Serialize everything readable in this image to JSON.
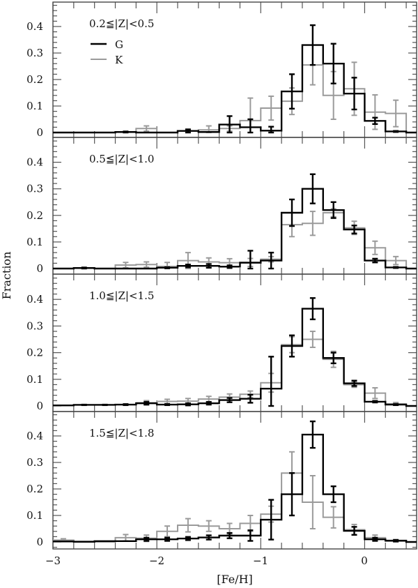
{
  "figure": {
    "xlabel": "[Fe/H]",
    "ylabel": "Fraction",
    "x_tick_labels": [
      "−3",
      "−2",
      "−1",
      "0"
    ],
    "y_tick_labels": [
      "0",
      "0.1",
      "0.2",
      "0.3",
      "0.4"
    ],
    "legend": [
      {
        "label": "G",
        "color": "#000000"
      },
      {
        "label": "K",
        "color": "#9a9a9a"
      }
    ]
  },
  "chart_data": {
    "type": "histogram-step",
    "xlabel": "[Fe/H]",
    "ylabel": "Fraction",
    "xlim": [
      -3,
      0.5
    ],
    "ylim": [
      -0.02,
      0.49
    ],
    "x_ticks": [
      -3,
      -2,
      -1,
      0
    ],
    "y_ticks": [
      0,
      0.1,
      0.2,
      0.3,
      0.4
    ],
    "bin_edges": [
      -3.0,
      -2.8,
      -2.6,
      -2.4,
      -2.2,
      -2.0,
      -1.8,
      -1.6,
      -1.4,
      -1.2,
      -1.0,
      -0.8,
      -0.6,
      -0.4,
      -0.2,
      0.0,
      0.2,
      0.4,
      0.6
    ],
    "series_names": [
      "G",
      "K"
    ],
    "series_colors": {
      "G": "#000000",
      "K": "#9a9a9a"
    },
    "panels": [
      {
        "label": "0.2≦|Z|<0.5",
        "show_legend": true,
        "G": {
          "values": [
            0,
            0,
            0,
            0.002,
            0,
            0,
            0.006,
            0.002,
            0.03,
            0.02,
            0.007,
            0.155,
            0.33,
            0.26,
            0.147,
            0.044,
            0.004,
            0
          ],
          "errors": [
            0,
            0,
            0,
            0.002,
            0,
            0,
            0.006,
            0,
            0.032,
            0.03,
            0.015,
            0.065,
            0.075,
            0.075,
            0.06,
            0.012,
            0.002,
            0
          ]
        },
        "K": {
          "values": [
            0,
            0,
            0,
            0.002,
            0.015,
            0,
            0.006,
            0.01,
            0.015,
            0.045,
            0.092,
            0.118,
            0.255,
            0.14,
            0.165,
            0.077,
            0.072,
            0
          ],
          "errors": [
            0,
            0,
            0,
            0,
            0.01,
            0,
            0,
            0.015,
            0.01,
            0.085,
            0.045,
            0.05,
            0.075,
            0.09,
            0.1,
            0.065,
            0.05,
            0
          ]
        }
      },
      {
        "label": "0.5≦|Z|<1.0",
        "show_legend": false,
        "G": {
          "values": [
            0,
            0.002,
            0,
            0,
            0,
            0.003,
            0.01,
            0.01,
            0.007,
            0.022,
            0.03,
            0.21,
            0.3,
            0.22,
            0.147,
            0.03,
            0.004,
            0
          ],
          "errors": [
            0,
            0.002,
            0,
            0,
            0,
            0.002,
            0.005,
            0.007,
            0.005,
            0.045,
            0.03,
            0.05,
            0.055,
            0.03,
            0.015,
            0.007,
            0.002,
            0
          ]
        },
        "K": {
          "values": [
            0,
            0.002,
            0,
            0.013,
            0.015,
            0.008,
            0.03,
            0.025,
            0.022,
            0.023,
            0.035,
            0.165,
            0.17,
            0.21,
            0.153,
            0.078,
            0.03,
            0
          ],
          "errors": [
            0,
            0,
            0,
            0.01,
            0.01,
            0.015,
            0.03,
            0.015,
            0.015,
            0.015,
            0.01,
            0.045,
            0.045,
            0.015,
            0.025,
            0.025,
            0.015,
            0
          ]
        }
      },
      {
        "label": "1.0≦|Z|<1.5",
        "show_legend": false,
        "G": {
          "values": [
            0.002,
            0.004,
            0.004,
            0.005,
            0.01,
            0.005,
            0.006,
            0.01,
            0.022,
            0.027,
            0.065,
            0.225,
            0.365,
            0.18,
            0.085,
            0.016,
            0.005,
            0
          ],
          "errors": [
            0,
            0.001,
            0.001,
            0.002,
            0.005,
            0.002,
            0.004,
            0.005,
            0.008,
            0.015,
            0.12,
            0.04,
            0.04,
            0.02,
            0.01,
            0.003,
            0.002,
            0
          ]
        },
        "K": {
          "values": [
            0.002,
            0.004,
            0.004,
            0.005,
            0.012,
            0.017,
            0.018,
            0.026,
            0.033,
            0.044,
            0.087,
            0.23,
            0.25,
            0.175,
            0.08,
            0.048,
            0.008,
            0
          ],
          "errors": [
            0,
            0,
            0,
            0,
            0.008,
            0.008,
            0.01,
            0.01,
            0.012,
            0.012,
            0.035,
            0.03,
            0.03,
            0.03,
            0.01,
            0.02,
            0.005,
            0
          ]
        }
      },
      {
        "label": "1.5≦|Z|<1.8",
        "show_legend": false,
        "G": {
          "values": [
            0.002,
            0.001,
            0.003,
            0.003,
            0.01,
            0.01,
            0.013,
            0.017,
            0.024,
            0.024,
            0.084,
            0.18,
            0.405,
            0.18,
            0.042,
            0.01,
            0.005,
            0
          ],
          "errors": [
            0,
            0,
            0,
            0,
            0.006,
            0.006,
            0.006,
            0.008,
            0.01,
            0.02,
            0.075,
            0.08,
            0.05,
            0.03,
            0.015,
            0.006,
            0.003,
            0
          ]
        },
        "K": {
          "values": [
            0.007,
            0,
            0,
            0.016,
            0.014,
            0.04,
            0.063,
            0.06,
            0.05,
            0.07,
            0.105,
            0.26,
            0.15,
            0.093,
            0.046,
            0.016,
            0.003,
            0
          ],
          "errors": [
            0.005,
            0,
            0,
            0.012,
            0.012,
            0.02,
            0.025,
            0.02,
            0.02,
            0.03,
            0.03,
            0.08,
            0.1,
            0.04,
            0.02,
            0.01,
            0.003,
            0
          ]
        }
      }
    ]
  }
}
